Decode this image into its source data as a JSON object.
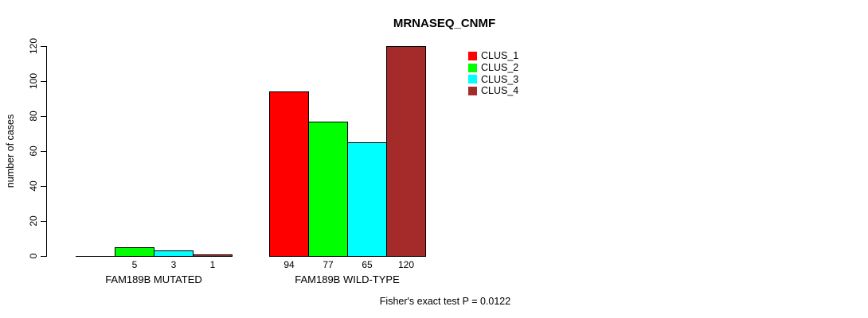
{
  "chart_data": {
    "type": "bar",
    "title": "MRNASEQ_CNMF",
    "ylabel": "number of cases",
    "xlabel": "",
    "ylim": [
      0,
      120
    ],
    "yticks": [
      "0",
      "20",
      "40",
      "60",
      "80",
      "100",
      "120"
    ],
    "grid": false,
    "legend_position": "inside-top-right",
    "series": [
      {
        "name": "CLUS_1",
        "color": "#FF0000"
      },
      {
        "name": "CLUS_2",
        "color": "#00FF00"
      },
      {
        "name": "CLUS_3",
        "color": "#00FFFF"
      },
      {
        "name": "CLUS_4",
        "color": "#A52A2A"
      }
    ],
    "groups": [
      {
        "label": "FAM189B MUTATED",
        "values": [
          0,
          5,
          3,
          1
        ],
        "value_labels": [
          "",
          "5",
          "3",
          "1"
        ]
      },
      {
        "label": "FAM189B WILD-TYPE",
        "values": [
          94,
          77,
          65,
          120
        ],
        "value_labels": [
          "94",
          "77",
          "65",
          "120"
        ]
      }
    ],
    "annotation": "Fisher's exact test P = 0.0122",
    "axis_color": "#000000",
    "background_color": "#FFFFFF"
  }
}
